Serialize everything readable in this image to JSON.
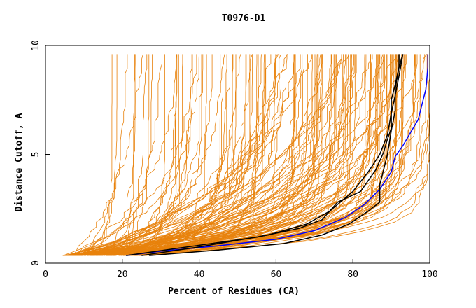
{
  "chart_data": {
    "type": "line",
    "title": "T0976-D1",
    "xlabel": "Percent of Residues (CA)",
    "ylabel": "Distance Cutoff, A",
    "xlim": [
      0,
      100
    ],
    "ylim": [
      0,
      10
    ],
    "xticks": [
      "0",
      "20",
      "40",
      "60",
      "80",
      "100"
    ],
    "yticks": [
      "0",
      "5",
      "10"
    ],
    "grid": false,
    "colors": {
      "background": "#ffffff",
      "models": "#e8820c",
      "highlight_black": "#000000",
      "highlight_blue": "#0000ff",
      "axis": "#000000"
    },
    "series": [
      {
        "color": "#0000ff",
        "values": [
          [
            21,
            0.35
          ],
          [
            30,
            0.55
          ],
          [
            45,
            0.8
          ],
          [
            60,
            1.1
          ],
          [
            70,
            1.5
          ],
          [
            78,
            2.1
          ],
          [
            83,
            2.7
          ],
          [
            87,
            3.4
          ],
          [
            90,
            4.2
          ],
          [
            91,
            4.9
          ],
          [
            93,
            5.4
          ],
          [
            95,
            6.0
          ],
          [
            97,
            6.6
          ],
          [
            98,
            7.3
          ],
          [
            99,
            8.0
          ],
          [
            99.5,
            9.0
          ],
          [
            99.5,
            9.6
          ]
        ]
      },
      {
        "color": "#000000",
        "values": [
          [
            21,
            0.35
          ],
          [
            35,
            0.7
          ],
          [
            55,
            1.2
          ],
          [
            66,
            1.6
          ],
          [
            72,
            2.0
          ],
          [
            76,
            2.8
          ],
          [
            82,
            3.3
          ],
          [
            86,
            4.3
          ],
          [
            88,
            5.1
          ],
          [
            89,
            5.7
          ],
          [
            90,
            6.2
          ],
          [
            90,
            7.5
          ],
          [
            91,
            8.2
          ],
          [
            92,
            9.0
          ],
          [
            93,
            9.6
          ]
        ]
      },
      {
        "color": "#000000",
        "values": [
          [
            25,
            0.35
          ],
          [
            40,
            0.75
          ],
          [
            58,
            1.3
          ],
          [
            68,
            1.8
          ],
          [
            74,
            2.4
          ],
          [
            80,
            3.3
          ],
          [
            84,
            4.2
          ],
          [
            87,
            5.0
          ],
          [
            89,
            5.9
          ],
          [
            90,
            6.9
          ],
          [
            91,
            7.7
          ],
          [
            92,
            8.6
          ],
          [
            93,
            9.6
          ]
        ]
      },
      {
        "color": "#000000",
        "values": [
          [
            27,
            0.35
          ],
          [
            45,
            0.6
          ],
          [
            62,
            0.9
          ],
          [
            72,
            1.3
          ],
          [
            79,
            1.8
          ],
          [
            84,
            2.4
          ],
          [
            87,
            2.8
          ],
          [
            87,
            3.6
          ],
          [
            88,
            4.3
          ],
          [
            89,
            5.0
          ],
          [
            90,
            6.1
          ],
          [
            91,
            7.0
          ],
          [
            91,
            8.0
          ],
          [
            92,
            9.0
          ],
          [
            92,
            9.6
          ]
        ]
      }
    ]
  }
}
